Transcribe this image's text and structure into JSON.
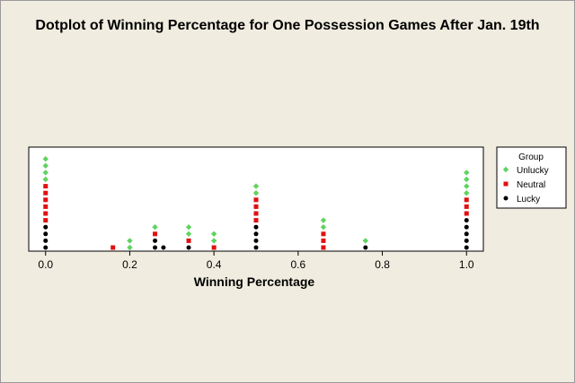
{
  "chart_data": {
    "type": "scatter",
    "subtype": "stacked-dotplot",
    "title": "Dotplot of Winning Percentage for One Possession Games After Jan. 19th",
    "xlabel": "Winning Percentage",
    "ylabel": "",
    "xlim": [
      -0.04,
      1.04
    ],
    "xticks": [
      "0.0",
      "0.2",
      "0.4",
      "0.6",
      "0.8",
      "1.0"
    ],
    "grid": false,
    "legend": {
      "title": "Group",
      "position": "right",
      "entries": [
        {
          "name": "Unlucky",
          "shape": "diamond",
          "color": "#5fd35f"
        },
        {
          "name": "Neutral",
          "shape": "square",
          "color": "#e01010"
        },
        {
          "name": "Lucky",
          "shape": "circle",
          "color": "#000000"
        }
      ]
    },
    "stacks": [
      {
        "x": 0.0,
        "Lucky": 4,
        "Neutral": 6,
        "Unlucky": 4
      },
      {
        "x": 0.16,
        "Lucky": 0,
        "Neutral": 1,
        "Unlucky": 0
      },
      {
        "x": 0.2,
        "Lucky": 0,
        "Neutral": 0,
        "Unlucky": 2
      },
      {
        "x": 0.26,
        "Lucky": 2,
        "Neutral": 1,
        "Unlucky": 1
      },
      {
        "x": 0.28,
        "Lucky": 1,
        "Neutral": 0,
        "Unlucky": 0
      },
      {
        "x": 0.34,
        "Lucky": 1,
        "Neutral": 1,
        "Unlucky": 2
      },
      {
        "x": 0.4,
        "Lucky": 0,
        "Neutral": 1,
        "Unlucky": 2
      },
      {
        "x": 0.5,
        "Lucky": 4,
        "Neutral": 4,
        "Unlucky": 2
      },
      {
        "x": 0.66,
        "Lucky": 0,
        "Neutral": 3,
        "Unlucky": 2
      },
      {
        "x": 0.76,
        "Lucky": 1,
        "Neutral": 0,
        "Unlucky": 1
      },
      {
        "x": 1.0,
        "Lucky": 5,
        "Neutral": 3,
        "Unlucky": 4
      }
    ]
  }
}
